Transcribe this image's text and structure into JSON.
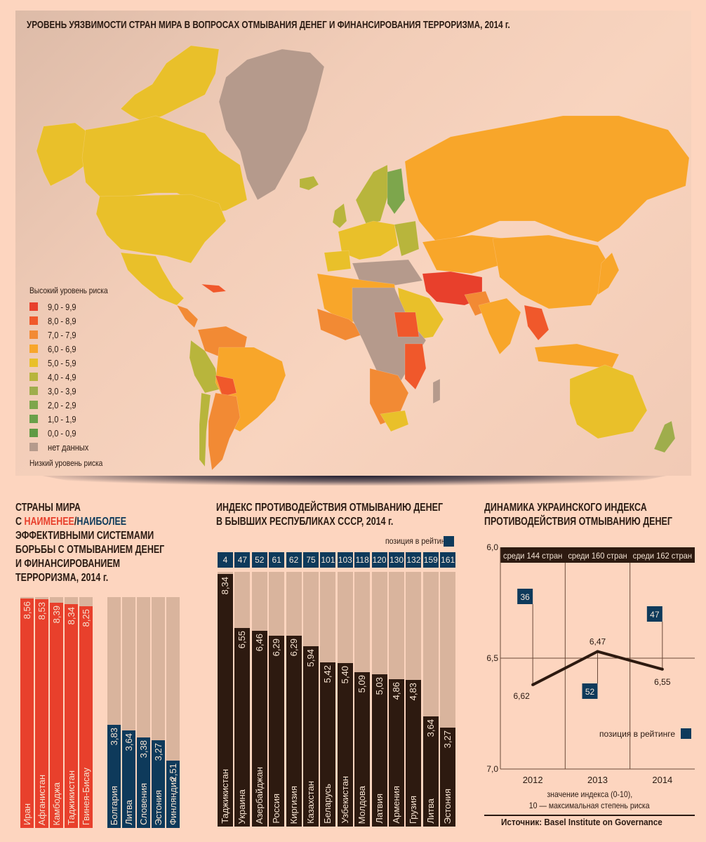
{
  "map": {
    "title": "УРОВЕНЬ УЯЗВИМОСТИ СТРАН МИРА В ВОПРОСАХ ОТМЫВАНИЯ ДЕНЕГ И ФИНАНСИРОВАНИЯ ТЕРРОРИЗМА, 2014 г.",
    "legend": {
      "high_label": "Высокий уровень риска",
      "low_label": "Низкий уровень риска",
      "items": [
        {
          "label": "9,0 - 9,9",
          "color": "#e8402c"
        },
        {
          "label": "8,0 - 8,9",
          "color": "#f0582b"
        },
        {
          "label": "7,0 - 7,9",
          "color": "#f28a34"
        },
        {
          "label": "6,0 - 6,9",
          "color": "#f8a62a"
        },
        {
          "label": "5,0 - 5,9",
          "color": "#e9c02a"
        },
        {
          "label": "4,0 - 4,9",
          "color": "#b8b53c"
        },
        {
          "label": "3,0 - 3,9",
          "color": "#9fad4c"
        },
        {
          "label": "2,0 - 2,9",
          "color": "#7da64c"
        },
        {
          "label": "1,0 - 1,9",
          "color": "#6aa04a"
        },
        {
          "label": "0,0 - 0,9",
          "color": "#5f9a44"
        },
        {
          "label": "нет данных",
          "color": "#b59a8c"
        }
      ]
    }
  },
  "left": {
    "heading_line1": "СТРАНЫ МИРА",
    "heading_c": "С ",
    "heading_least": "НАИМЕНЕЕ",
    "heading_slash": "/",
    "heading_most": "НАИБОЛЕЕ",
    "heading_line3": "ЭФФЕКТИВНЫМИ СИСТЕМАМИ",
    "heading_line4": "БОРЬБЫ С ОТМЫВАНИЕМ ДЕНЕГ",
    "heading_line5": "И ФИНАНСИРОВАНИЕМ",
    "heading_line6": "ТЕРРОРИЗМА, 2014 г."
  },
  "middle": {
    "heading_line1": "ИНДЕКС ПРОТИВОДЕЙСТВИЯ ОТМЫВАНИЮ ДЕНЕГ",
    "heading_line2": "В БЫВШИХ РЕСПУБЛИКАХ СССР, 2014 г.",
    "rank_legend": "позиция в рейтинге"
  },
  "right": {
    "heading_line1": "ДИНАМИКА УКРАИНСКОГО ИНДЕКСА",
    "heading_line2": "ПРОТИВОДЕЙСТВИЯ ОТМЫВАНИЮ ДЕНЕГ",
    "rank_legend": "позиция в рейтинге",
    "note_line1": "значение индекса (0-10),",
    "note_line2": "10 — максимальная степень риска",
    "source": "Источник: Basel Institute on Governance"
  },
  "colors": {
    "least_effective": "#e8402c",
    "most_effective": "#0e3a5b",
    "post_soviet_bar": "#2d1a10",
    "bar_track": "#d9b49d",
    "rank_box": "#0e3a5b"
  },
  "chart_data": [
    {
      "type": "bar",
      "title": "Страны мира с наименее/наиболее эффективными системами борьбы с отмыванием денег и финансированием терроризма, 2014 г.",
      "ylim": [
        0,
        10
      ],
      "series": [
        {
          "name": "наименее эффективные",
          "categories": [
            "Иран",
            "Афганистан",
            "Камбоджа",
            "Таджикистан",
            "Гвинея-Бисау"
          ],
          "values": [
            8.56,
            8.53,
            8.39,
            8.34,
            8.25
          ],
          "labels": [
            "8,56",
            "8,53",
            "8,39",
            "8,34",
            "8,25"
          ]
        },
        {
          "name": "наиболее эффективные",
          "categories": [
            "Болгария",
            "Литва",
            "Словения",
            "Эстония",
            "Финляндия"
          ],
          "values": [
            3.83,
            3.64,
            3.38,
            3.27,
            2.51
          ],
          "labels": [
            "3,83",
            "3,64",
            "3,38",
            "3,27",
            "2,51"
          ]
        }
      ]
    },
    {
      "type": "bar",
      "title": "Индекс противодействия отмыванию денег в бывших республиках СССР, 2014 г.",
      "ylim": [
        0,
        8.5
      ],
      "categories": [
        "Таджикистан",
        "Украина",
        "Азербайджан",
        "Россия",
        "Киргизия",
        "Казахстан",
        "Беларусь",
        "Узбекистан",
        "Молдова",
        "Латвия",
        "Армения",
        "Грузия",
        "Литва",
        "Эстония"
      ],
      "values": [
        8.34,
        6.55,
        6.46,
        6.29,
        6.29,
        5.94,
        5.42,
        5.4,
        5.09,
        5.03,
        4.86,
        4.83,
        3.64,
        3.27
      ],
      "labels": [
        "8,34",
        "6,55",
        "6,46",
        "6,29",
        "6,29",
        "5,94",
        "5,42",
        "5,40",
        "5,09",
        "5,03",
        "4,86",
        "4,83",
        "3,64",
        "3,27"
      ],
      "ranks": [
        "4",
        "47",
        "52",
        "61",
        "62",
        "75",
        "101",
        "103",
        "118",
        "120",
        "130",
        "132",
        "159",
        "161"
      ]
    },
    {
      "type": "line",
      "title": "Динамика украинского индекса противодействия отмыванию денег",
      "x": [
        "2012",
        "2013",
        "2014"
      ],
      "values": [
        6.62,
        6.47,
        6.55
      ],
      "labels": [
        "6,62",
        "6,47",
        "6,55"
      ],
      "ranks": [
        "36",
        "52",
        "47"
      ],
      "period_labels": [
        "среди 144 стран",
        "среди 160 стран",
        "среди 162 стран"
      ],
      "ylim": [
        6.0,
        7.0
      ],
      "y_inverted": true,
      "yticks": [
        "6,0",
        "6,5",
        "7,0"
      ],
      "ytick_values": [
        6.0,
        6.5,
        7.0
      ],
      "grid": true
    }
  ]
}
